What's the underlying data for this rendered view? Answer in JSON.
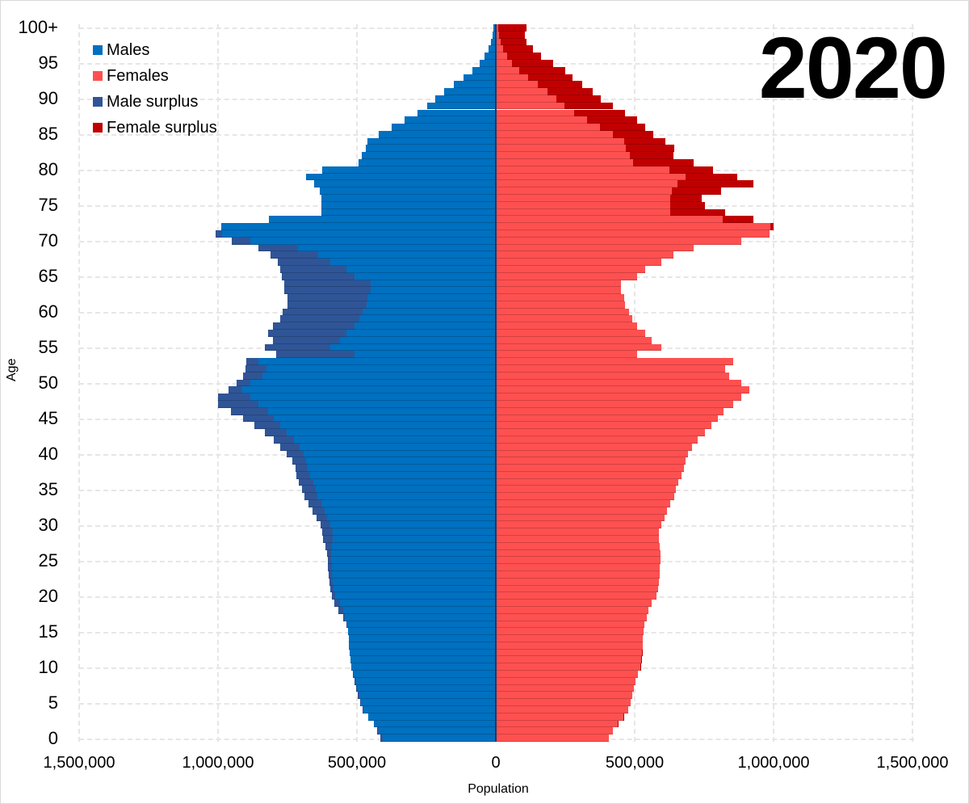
{
  "title": "2020",
  "legend": [
    {
      "label": "Males",
      "color": "#0070c0"
    },
    {
      "label": "Females",
      "color": "#ff5050"
    },
    {
      "label": "Male surplus",
      "color": "#2f5597"
    },
    {
      "label": "Female surplus",
      "color": "#c00000"
    }
  ],
  "axes": {
    "xlabel": "Population",
    "ylabel": "Age",
    "x_ticks": [
      "1,500,000",
      "1,000,000",
      "500,000",
      "0",
      "500,000",
      "1,000,000",
      "1,500,000"
    ],
    "y_ticks": [
      "0",
      "5",
      "10",
      "15",
      "20",
      "25",
      "30",
      "35",
      "40",
      "45",
      "50",
      "55",
      "60",
      "65",
      "70",
      "75",
      "80",
      "85",
      "90",
      "95",
      "100+"
    ]
  },
  "chart_data": {
    "type": "bar",
    "subtype": "population-pyramid",
    "title": "2020",
    "xlabel": "Population",
    "ylabel": "Age",
    "xlim": [
      -1500000,
      1500000
    ],
    "x_ticks": [
      -1500000,
      -1000000,
      -500000,
      0,
      500000,
      1000000,
      1500000
    ],
    "y_ticks": [
      0,
      5,
      10,
      15,
      20,
      25,
      30,
      35,
      40,
      45,
      50,
      55,
      60,
      65,
      70,
      75,
      80,
      85,
      90,
      95,
      100
    ],
    "grid": true,
    "legend_position": "top-left",
    "legend": [
      "Males",
      "Females",
      "Male surplus",
      "Female surplus"
    ],
    "categories": [
      "0",
      "1",
      "2",
      "3",
      "4",
      "5",
      "6",
      "7",
      "8",
      "9",
      "10",
      "11",
      "12",
      "13",
      "14",
      "15",
      "16",
      "17",
      "18",
      "19",
      "20",
      "21",
      "22",
      "23",
      "24",
      "25",
      "26",
      "27",
      "28",
      "29",
      "30",
      "31",
      "32",
      "33",
      "34",
      "35",
      "36",
      "37",
      "38",
      "39",
      "40",
      "41",
      "42",
      "43",
      "44",
      "45",
      "46",
      "47",
      "48",
      "49",
      "50",
      "51",
      "52",
      "53",
      "54",
      "55",
      "56",
      "57",
      "58",
      "59",
      "60",
      "61",
      "62",
      "63",
      "64",
      "65",
      "66",
      "67",
      "68",
      "69",
      "70",
      "71",
      "72",
      "73",
      "74",
      "75",
      "76",
      "77",
      "78",
      "79",
      "80",
      "81",
      "82",
      "83",
      "84",
      "85",
      "86",
      "87",
      "88",
      "89",
      "90",
      "91",
      "92",
      "93",
      "94",
      "95",
      "96",
      "97",
      "98",
      "99",
      "100+"
    ],
    "series": [
      {
        "name": "Males",
        "values": [
          416000,
          428000,
          439000,
          460000,
          480000,
          488000,
          497000,
          503000,
          509000,
          514000,
          520000,
          523000,
          526000,
          529000,
          529000,
          532000,
          538000,
          549000,
          566000,
          581000,
          590000,
          595000,
          598000,
          601000,
          604000,
          604000,
          607000,
          613000,
          621000,
          624000,
          630000,
          645000,
          659000,
          673000,
          688000,
          699000,
          708000,
          717000,
          722000,
          734000,
          754000,
          777000,
          800000,
          832000,
          870000,
          910000,
          954000,
          1000000,
          1000000,
          962000,
          934000,
          910000,
          902000,
          899000,
          792000,
          832000,
          803000,
          821000,
          803000,
          777000,
          766000,
          751000,
          751000,
          763000,
          763000,
          769000,
          775000,
          786000,
          812000,
          855000,
          951000,
          1009000,
          988000,
          818000,
          627000,
          627000,
          627000,
          633000,
          653000,
          682000,
          624000,
          494000,
          483000,
          468000,
          462000,
          422000,
          376000,
          329000,
          283000,
          248000,
          217000,
          185000,
          150000,
          116000,
          84000,
          58000,
          40000,
          26000,
          17000,
          12000,
          9000
        ]
      },
      {
        "name": "Females",
        "values": [
          407000,
          422000,
          442000,
          462000,
          477000,
          485000,
          491000,
          497000,
          503000,
          512000,
          523000,
          526000,
          529000,
          529000,
          529000,
          532000,
          535000,
          543000,
          549000,
          561000,
          578000,
          584000,
          587000,
          590000,
          590000,
          593000,
          593000,
          590000,
          587000,
          587000,
          596000,
          607000,
          616000,
          627000,
          642000,
          648000,
          656000,
          668000,
          676000,
          682000,
          691000,
          705000,
          728000,
          754000,
          775000,
          798000,
          821000,
          855000,
          884000,
          913000,
          884000,
          841000,
          827000,
          855000,
          509000,
          595000,
          561000,
          538000,
          509000,
          491000,
          480000,
          465000,
          462000,
          451000,
          451000,
          509000,
          538000,
          595000,
          639000,
          711000,
          884000,
          985000,
          1000000,
          928000,
          827000,
          754000,
          740000,
          812000,
          928000,
          870000,
          783000,
          711000,
          639000,
          642000,
          610000,
          567000,
          538000,
          509000,
          465000,
          422000,
          379000,
          350000,
          312000,
          277000,
          249000,
          205000,
          162000,
          133000,
          110000,
          104000,
          110000
        ]
      },
      {
        "name": "Male surplus",
        "description": "portion of male bar exceeding female count (rendered in darker blue at bar tip)"
      },
      {
        "name": "Female surplus",
        "description": "portion of female bar exceeding male count (rendered in dark red at bar tip)"
      }
    ]
  },
  "colors": {
    "male": "#0070c0",
    "female": "#ff5050",
    "male_surplus": "#2f5597",
    "female_surplus": "#c00000",
    "center_axis": "#1f3864",
    "grid": "#e6e6e6"
  }
}
